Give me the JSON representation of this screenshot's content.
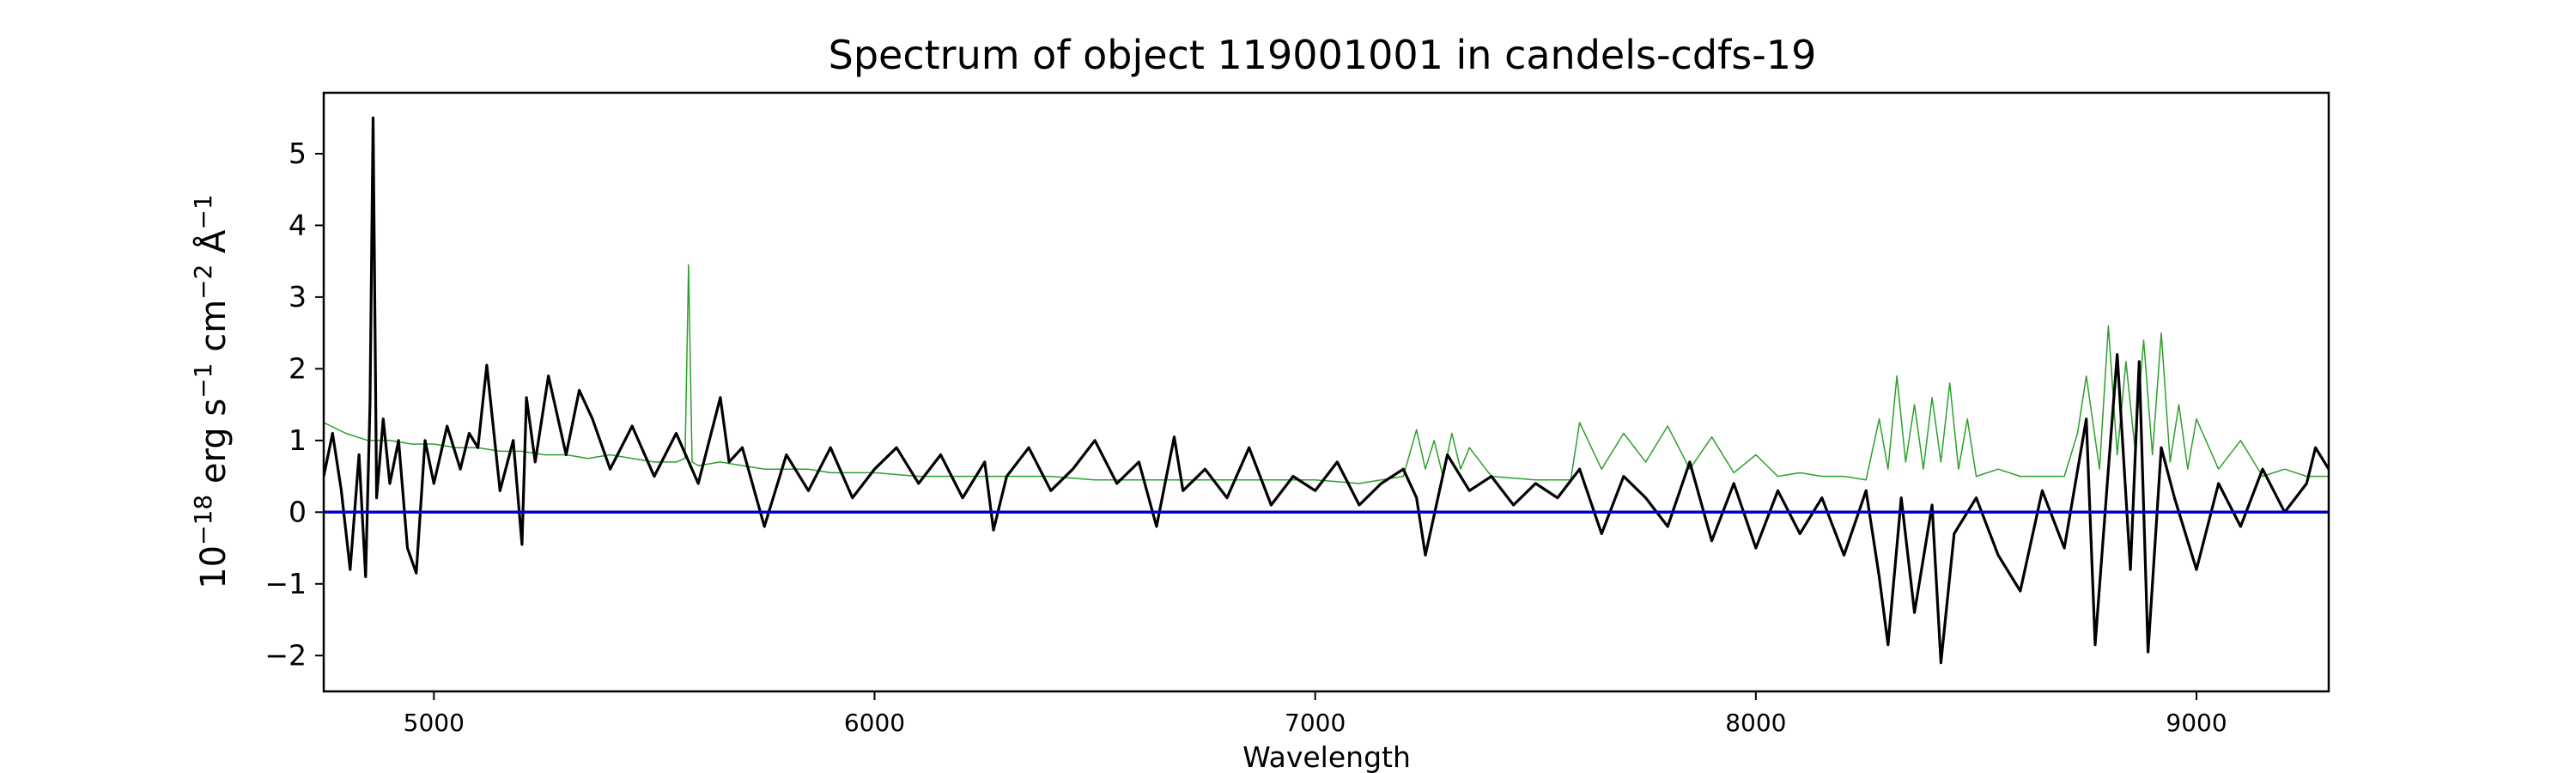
{
  "chart_data": {
    "type": "line",
    "title": "Spectrum of object 119001001 in candels-cdfs-19",
    "xlabel": "Wavelength",
    "ylabel_base": "10",
    "ylabel_exp": "−18",
    "ylabel_unit1": " erg s",
    "ylabel_unit1_exp": "−1",
    "ylabel_unit2": " cm",
    "ylabel_unit2_exp": "−2",
    "ylabel_unit3": " Å",
    "ylabel_unit3_exp": "−1",
    "xlim": [
      4750,
      9300
    ],
    "ylim": [
      -2.5,
      5.85
    ],
    "xticks": [
      5000,
      6000,
      7000,
      8000,
      9000
    ],
    "yticks": [
      -2,
      -1,
      0,
      1,
      2,
      3,
      4,
      5
    ],
    "grid": false,
    "legend": "none",
    "series": [
      {
        "role": "flux",
        "color": "#000000",
        "x": [
          4750,
          4770,
          4790,
          4810,
          4830,
          4845,
          4855,
          4862,
          4870,
          4885,
          4900,
          4920,
          4940,
          4960,
          4980,
          5000,
          5030,
          5060,
          5080,
          5100,
          5120,
          5150,
          5180,
          5200,
          5210,
          5230,
          5260,
          5300,
          5330,
          5360,
          5400,
          5450,
          5500,
          5550,
          5600,
          5650,
          5670,
          5700,
          5750,
          5800,
          5850,
          5900,
          5950,
          6000,
          6050,
          6100,
          6150,
          6200,
          6250,
          6270,
          6300,
          6350,
          6400,
          6450,
          6500,
          6550,
          6600,
          6640,
          6680,
          6700,
          6750,
          6800,
          6850,
          6900,
          6950,
          7000,
          7050,
          7100,
          7150,
          7200,
          7230,
          7250,
          7300,
          7350,
          7400,
          7450,
          7500,
          7550,
          7600,
          7650,
          7700,
          7750,
          7800,
          7850,
          7900,
          7950,
          8000,
          8050,
          8100,
          8150,
          8200,
          8250,
          8280,
          8300,
          8330,
          8360,
          8400,
          8420,
          8450,
          8500,
          8550,
          8600,
          8650,
          8700,
          8750,
          8770,
          8800,
          8820,
          8850,
          8870,
          8890,
          8920,
          8950,
          9000,
          9050,
          9100,
          9150,
          9200,
          9250,
          9270,
          9300
        ],
        "y": [
          0.5,
          1.1,
          0.3,
          -0.8,
          0.8,
          -0.9,
          1.5,
          5.5,
          0.2,
          1.3,
          0.4,
          1.0,
          -0.5,
          -0.85,
          1.0,
          0.4,
          1.2,
          0.6,
          1.1,
          0.9,
          2.05,
          0.3,
          1.0,
          -0.45,
          1.6,
          0.7,
          1.9,
          0.8,
          1.7,
          1.3,
          0.6,
          1.2,
          0.5,
          1.1,
          0.4,
          1.6,
          0.7,
          0.9,
          -0.2,
          0.8,
          0.3,
          0.9,
          0.2,
          0.6,
          0.9,
          0.4,
          0.8,
          0.2,
          0.7,
          -0.25,
          0.5,
          0.9,
          0.3,
          0.6,
          1.0,
          0.4,
          0.7,
          -0.2,
          1.05,
          0.3,
          0.6,
          0.2,
          0.9,
          0.1,
          0.5,
          0.3,
          0.7,
          0.1,
          0.4,
          0.6,
          0.2,
          -0.6,
          0.8,
          0.3,
          0.5,
          0.1,
          0.4,
          0.2,
          0.6,
          -0.3,
          0.5,
          0.2,
          -0.2,
          0.7,
          -0.4,
          0.4,
          -0.5,
          0.3,
          -0.3,
          0.2,
          -0.6,
          0.3,
          -0.9,
          -1.85,
          0.2,
          -1.4,
          0.1,
          -2.1,
          -0.3,
          0.2,
          -0.6,
          -1.1,
          0.3,
          -0.5,
          1.3,
          -1.85,
          0.6,
          2.2,
          -0.8,
          2.1,
          -1.95,
          0.9,
          0.2,
          -0.8,
          0.4,
          -0.2,
          0.6,
          0.0,
          0.4,
          0.9,
          0.6
        ]
      },
      {
        "role": "noise",
        "color": "#2ca02c",
        "x": [
          4750,
          4800,
          4850,
          4900,
          4950,
          5000,
          5050,
          5100,
          5150,
          5200,
          5250,
          5300,
          5350,
          5400,
          5450,
          5500,
          5550,
          5570,
          5578,
          5586,
          5600,
          5650,
          5700,
          5750,
          5800,
          5850,
          5900,
          5950,
          6000,
          6100,
          6200,
          6300,
          6400,
          6500,
          6600,
          6700,
          6800,
          6900,
          7000,
          7100,
          7200,
          7230,
          7250,
          7270,
          7290,
          7310,
          7330,
          7350,
          7400,
          7500,
          7580,
          7600,
          7650,
          7700,
          7750,
          7800,
          7850,
          7900,
          7950,
          8000,
          8050,
          8100,
          8150,
          8200,
          8250,
          8280,
          8300,
          8320,
          8340,
          8360,
          8380,
          8400,
          8420,
          8440,
          8460,
          8480,
          8500,
          8550,
          8600,
          8650,
          8700,
          8730,
          8750,
          8780,
          8800,
          8820,
          8840,
          8860,
          8880,
          8900,
          8920,
          8940,
          8960,
          8980,
          9000,
          9050,
          9100,
          9150,
          9200,
          9250,
          9300
        ],
        "y": [
          1.25,
          1.1,
          1.0,
          1.0,
          0.95,
          0.95,
          0.9,
          0.9,
          0.85,
          0.85,
          0.8,
          0.8,
          0.75,
          0.8,
          0.75,
          0.7,
          0.7,
          0.75,
          3.45,
          0.7,
          0.65,
          0.7,
          0.65,
          0.6,
          0.6,
          0.6,
          0.55,
          0.55,
          0.55,
          0.5,
          0.5,
          0.5,
          0.5,
          0.45,
          0.45,
          0.45,
          0.45,
          0.45,
          0.45,
          0.4,
          0.5,
          1.15,
          0.6,
          1.0,
          0.5,
          1.1,
          0.6,
          0.9,
          0.5,
          0.45,
          0.45,
          1.25,
          0.6,
          1.1,
          0.7,
          1.2,
          0.6,
          1.05,
          0.55,
          0.8,
          0.5,
          0.55,
          0.5,
          0.5,
          0.45,
          1.3,
          0.6,
          1.9,
          0.7,
          1.5,
          0.6,
          1.6,
          0.7,
          1.8,
          0.6,
          1.3,
          0.5,
          0.6,
          0.5,
          0.5,
          0.5,
          1.1,
          1.9,
          0.6,
          2.6,
          0.8,
          2.1,
          0.9,
          2.4,
          0.8,
          2.5,
          0.7,
          1.5,
          0.6,
          1.3,
          0.6,
          1.0,
          0.5,
          0.6,
          0.5,
          0.5
        ]
      },
      {
        "role": "zero",
        "color": "#0000cc",
        "x": [
          4750,
          9300
        ],
        "y": [
          0,
          0
        ]
      }
    ]
  }
}
